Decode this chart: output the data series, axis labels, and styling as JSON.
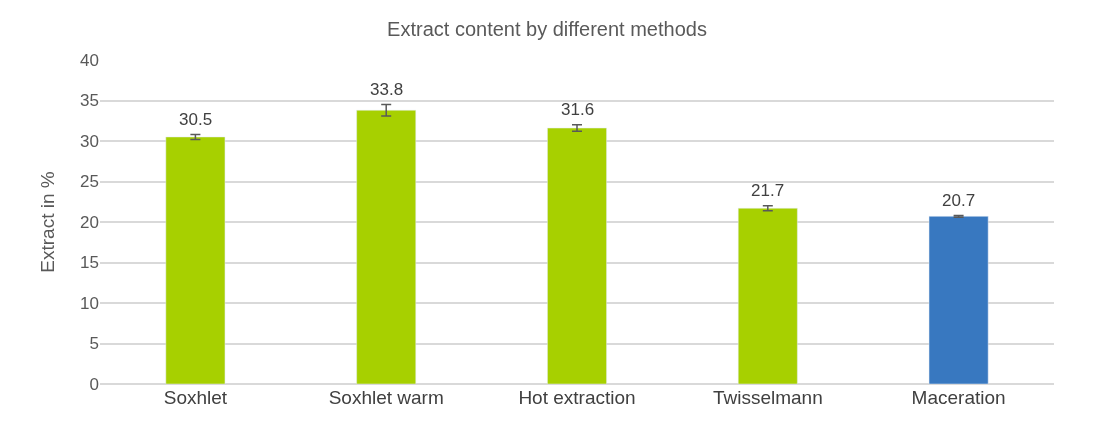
{
  "chart_data": {
    "type": "bar",
    "title": "Extract content by different methods",
    "ylabel": "Extract in %",
    "categories": [
      "Soxhlet",
      "Soxhlet warm",
      "Hot extraction",
      "Twisselmann",
      "Maceration"
    ],
    "values": [
      30.5,
      33.8,
      31.6,
      21.7,
      20.7
    ],
    "colors": [
      "#a7d000",
      "#a7d000",
      "#a7d000",
      "#a7d000",
      "#3878c0"
    ],
    "errors": [
      0.3,
      0.7,
      0.4,
      0.3,
      0.1
    ],
    "ylim": [
      0,
      40
    ],
    "yticks": [
      0,
      5,
      10,
      15,
      20,
      25,
      30,
      35,
      40
    ],
    "grid": "y",
    "data_labels": true,
    "legend": false
  }
}
